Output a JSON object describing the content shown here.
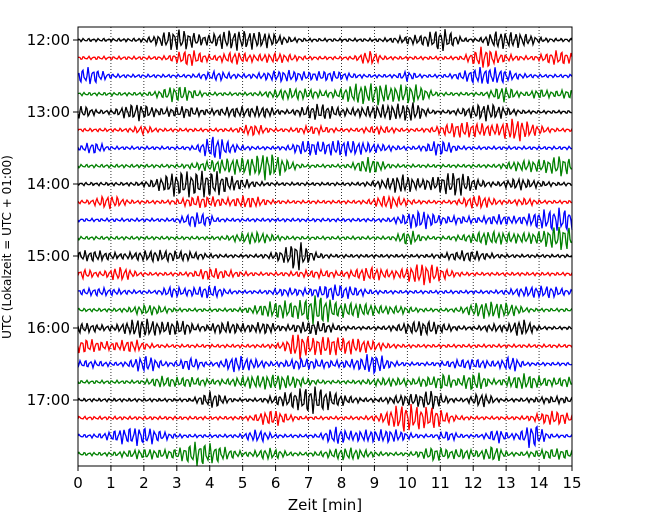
{
  "chart_data": {
    "type": "line",
    "title": "",
    "xlabel": "Zeit  [min]",
    "ylabel": "UTC (Lokalzeit = UTC + 01:00)",
    "xlim": [
      0,
      15
    ],
    "x_ticks": [
      0,
      1,
      2,
      3,
      4,
      5,
      6,
      7,
      8,
      9,
      10,
      11,
      12,
      13,
      14,
      15
    ],
    "grid": true,
    "trace_colors": [
      "#000000",
      "#ff0000",
      "#0000ff",
      "#008000"
    ],
    "traces_per_hour": 4,
    "trace_minutes": 15,
    "start_time": "12:00",
    "y_tick_labels": [
      "12:00",
      "13:00",
      "14:00",
      "15:00",
      "16:00",
      "17:00"
    ],
    "traces": [
      {
        "start": "12:00",
        "color": "#000000"
      },
      {
        "start": "12:15",
        "color": "#ff0000"
      },
      {
        "start": "12:30",
        "color": "#0000ff"
      },
      {
        "start": "12:45",
        "color": "#008000"
      },
      {
        "start": "13:00",
        "color": "#000000"
      },
      {
        "start": "13:15",
        "color": "#ff0000"
      },
      {
        "start": "13:30",
        "color": "#0000ff"
      },
      {
        "start": "13:45",
        "color": "#008000"
      },
      {
        "start": "14:00",
        "color": "#000000"
      },
      {
        "start": "14:15",
        "color": "#ff0000"
      },
      {
        "start": "14:30",
        "color": "#0000ff"
      },
      {
        "start": "14:45",
        "color": "#008000"
      },
      {
        "start": "15:00",
        "color": "#000000"
      },
      {
        "start": "15:15",
        "color": "#ff0000"
      },
      {
        "start": "15:30",
        "color": "#0000ff"
      },
      {
        "start": "15:45",
        "color": "#008000"
      },
      {
        "start": "16:00",
        "color": "#000000"
      },
      {
        "start": "16:15",
        "color": "#ff0000"
      },
      {
        "start": "16:30",
        "color": "#0000ff"
      },
      {
        "start": "16:45",
        "color": "#008000"
      },
      {
        "start": "17:00",
        "color": "#000000"
      },
      {
        "start": "17:15",
        "color": "#ff0000"
      },
      {
        "start": "17:30",
        "color": "#0000ff"
      },
      {
        "start": "17:45",
        "color": "#008000"
      }
    ]
  }
}
